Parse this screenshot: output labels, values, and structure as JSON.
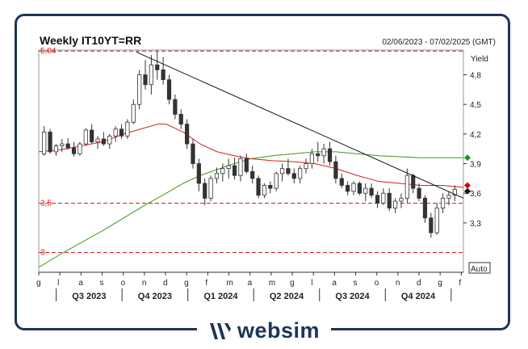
{
  "header": {
    "title": "Weekly IT10YT=RR",
    "date_range": "02/06/2023 - 07/02/2025 (GMT)"
  },
  "brand": {
    "name": "websim",
    "color": "#1d3557"
  },
  "chart_data": {
    "type": "candlestick",
    "y_axis_title": "Yield",
    "y_ticks": [
      "4,8",
      "4,5",
      "4,2",
      "3,9",
      "3,6",
      "3,3"
    ],
    "y_tick_values": [
      4.8,
      4.5,
      4.2,
      3.9,
      3.6,
      3.3
    ],
    "ylim": [
      2.8,
      5.05
    ],
    "reference_lines": [
      {
        "label": "5,04",
        "value": 5.04
      },
      {
        "label": "3,5",
        "value": 3.5
      },
      {
        "label": "3",
        "value": 3.0
      }
    ],
    "auto_label": "Auto",
    "month_ticks": [
      "g",
      "l",
      "a",
      "s",
      "o",
      "n",
      "d",
      "g",
      "f",
      "m",
      "a",
      "m",
      "g",
      "l",
      "a",
      "s",
      "o",
      "n",
      "d",
      "g",
      "f"
    ],
    "quarters": [
      "Q3 2023",
      "Q4 2023",
      "Q1 2024",
      "Q2 2024",
      "Q3 2024",
      "Q4 2024"
    ],
    "trendline": {
      "start": [
        0.23,
        5.03
      ],
      "end": [
        1.0,
        3.55
      ]
    },
    "markers": [
      {
        "color": "#1a9a1a",
        "value": 3.96
      },
      {
        "color": "#dd0000",
        "value": 3.68
      },
      {
        "color": "#111111",
        "value": 3.62
      }
    ],
    "colors": {
      "ma_short": "#d42020",
      "ma_long": "#3c9a14",
      "reference": "#d42020",
      "candles": "#333333",
      "trend": "#111111"
    },
    "candles": [
      [
        4.0,
        4.28,
        3.98,
        4.22
      ],
      [
        4.22,
        4.25,
        4.0,
        4.02
      ],
      [
        4.02,
        4.1,
        3.98,
        4.08
      ],
      [
        4.08,
        4.15,
        4.02,
        4.1
      ],
      [
        4.1,
        4.16,
        4.04,
        4.06
      ],
      [
        4.06,
        4.12,
        3.97,
        4.0
      ],
      [
        4.0,
        4.12,
        3.98,
        4.1
      ],
      [
        4.1,
        4.26,
        4.08,
        4.24
      ],
      [
        4.24,
        4.3,
        4.1,
        4.12
      ],
      [
        4.12,
        4.18,
        4.05,
        4.15
      ],
      [
        4.15,
        4.22,
        4.08,
        4.1
      ],
      [
        4.1,
        4.2,
        4.05,
        4.18
      ],
      [
        4.18,
        4.28,
        4.12,
        4.25
      ],
      [
        4.25,
        4.3,
        4.15,
        4.18
      ],
      [
        4.18,
        4.35,
        4.15,
        4.32
      ],
      [
        4.32,
        4.55,
        4.3,
        4.5
      ],
      [
        4.5,
        4.85,
        4.45,
        4.8
      ],
      [
        4.8,
        4.95,
        4.65,
        4.7
      ],
      [
        4.7,
        5.0,
        4.6,
        4.9
      ],
      [
        4.9,
        5.04,
        4.75,
        4.85
      ],
      [
        4.85,
        4.98,
        4.7,
        4.75
      ],
      [
        4.75,
        4.8,
        4.5,
        4.55
      ],
      [
        4.55,
        4.6,
        4.35,
        4.4
      ],
      [
        4.4,
        4.45,
        4.25,
        4.3
      ],
      [
        4.3,
        4.35,
        4.05,
        4.1
      ],
      [
        4.1,
        4.15,
        3.85,
        3.9
      ],
      [
        3.9,
        3.95,
        3.62,
        3.7
      ],
      [
        3.7,
        3.75,
        3.48,
        3.55
      ],
      [
        3.55,
        3.78,
        3.52,
        3.75
      ],
      [
        3.75,
        3.86,
        3.7,
        3.8
      ],
      [
        3.8,
        3.9,
        3.72,
        3.85
      ],
      [
        3.85,
        3.95,
        3.75,
        3.88
      ],
      [
        3.88,
        3.96,
        3.74,
        3.78
      ],
      [
        3.78,
        3.98,
        3.72,
        3.95
      ],
      [
        3.95,
        4.0,
        3.8,
        3.82
      ],
      [
        3.82,
        3.88,
        3.7,
        3.75
      ],
      [
        3.75,
        3.78,
        3.55,
        3.58
      ],
      [
        3.58,
        3.7,
        3.55,
        3.68
      ],
      [
        3.68,
        3.72,
        3.6,
        3.65
      ],
      [
        3.65,
        3.82,
        3.62,
        3.8
      ],
      [
        3.8,
        3.9,
        3.72,
        3.85
      ],
      [
        3.85,
        3.95,
        3.78,
        3.8
      ],
      [
        3.8,
        3.85,
        3.7,
        3.75
      ],
      [
        3.75,
        3.88,
        3.7,
        3.85
      ],
      [
        3.85,
        3.95,
        3.8,
        3.9
      ],
      [
        3.9,
        4.05,
        3.85,
        4.0
      ],
      [
        4.0,
        4.12,
        3.92,
        3.98
      ],
      [
        3.98,
        4.1,
        3.9,
        4.05
      ],
      [
        4.05,
        4.12,
        3.88,
        3.92
      ],
      [
        3.92,
        3.98,
        3.7,
        3.75
      ],
      [
        3.75,
        3.8,
        3.65,
        3.68
      ],
      [
        3.68,
        3.72,
        3.58,
        3.62
      ],
      [
        3.62,
        3.72,
        3.58,
        3.7
      ],
      [
        3.7,
        3.72,
        3.58,
        3.6
      ],
      [
        3.6,
        3.7,
        3.52,
        3.65
      ],
      [
        3.65,
        3.7,
        3.55,
        3.58
      ],
      [
        3.58,
        3.62,
        3.45,
        3.5
      ],
      [
        3.5,
        3.65,
        3.48,
        3.6
      ],
      [
        3.6,
        3.65,
        3.42,
        3.45
      ],
      [
        3.45,
        3.55,
        3.4,
        3.52
      ],
      [
        3.52,
        3.6,
        3.45,
        3.55
      ],
      [
        3.55,
        3.85,
        3.5,
        3.78
      ],
      [
        3.78,
        3.8,
        3.6,
        3.65
      ],
      [
        3.65,
        3.7,
        3.52,
        3.55
      ],
      [
        3.55,
        3.58,
        3.3,
        3.35
      ],
      [
        3.35,
        3.4,
        3.15,
        3.2
      ],
      [
        3.2,
        3.5,
        3.18,
        3.45
      ],
      [
        3.45,
        3.6,
        3.4,
        3.55
      ],
      [
        3.55,
        3.62,
        3.48,
        3.58
      ],
      [
        3.58,
        3.68,
        3.52,
        3.64
      ]
    ],
    "ma_short": [
      [
        0.0,
        4.02
      ],
      [
        0.05,
        4.04
      ],
      [
        0.1,
        4.08
      ],
      [
        0.15,
        4.12
      ],
      [
        0.2,
        4.2
      ],
      [
        0.24,
        4.25
      ],
      [
        0.28,
        4.3
      ],
      [
        0.3,
        4.3
      ],
      [
        0.34,
        4.22
      ],
      [
        0.38,
        4.1
      ],
      [
        0.42,
        4.02
      ],
      [
        0.46,
        3.98
      ],
      [
        0.5,
        3.95
      ],
      [
        0.55,
        3.93
      ],
      [
        0.6,
        3.92
      ],
      [
        0.65,
        3.9
      ],
      [
        0.7,
        3.85
      ],
      [
        0.75,
        3.78
      ],
      [
        0.8,
        3.72
      ],
      [
        0.85,
        3.7
      ],
      [
        0.9,
        3.68
      ],
      [
        0.95,
        3.68
      ],
      [
        1.0,
        3.66
      ]
    ],
    "ma_long": [
      [
        0.0,
        2.85
      ],
      [
        0.05,
        2.98
      ],
      [
        0.1,
        3.1
      ],
      [
        0.15,
        3.22
      ],
      [
        0.2,
        3.35
      ],
      [
        0.25,
        3.48
      ],
      [
        0.3,
        3.6
      ],
      [
        0.34,
        3.7
      ],
      [
        0.38,
        3.78
      ],
      [
        0.42,
        3.84
      ],
      [
        0.46,
        3.9
      ],
      [
        0.5,
        3.95
      ],
      [
        0.55,
        3.98
      ],
      [
        0.6,
        4.0
      ],
      [
        0.65,
        4.02
      ],
      [
        0.7,
        4.02
      ],
      [
        0.75,
        4.0
      ],
      [
        0.8,
        3.98
      ],
      [
        0.85,
        3.97
      ],
      [
        0.9,
        3.96
      ],
      [
        0.95,
        3.96
      ],
      [
        1.0,
        3.96
      ]
    ]
  }
}
